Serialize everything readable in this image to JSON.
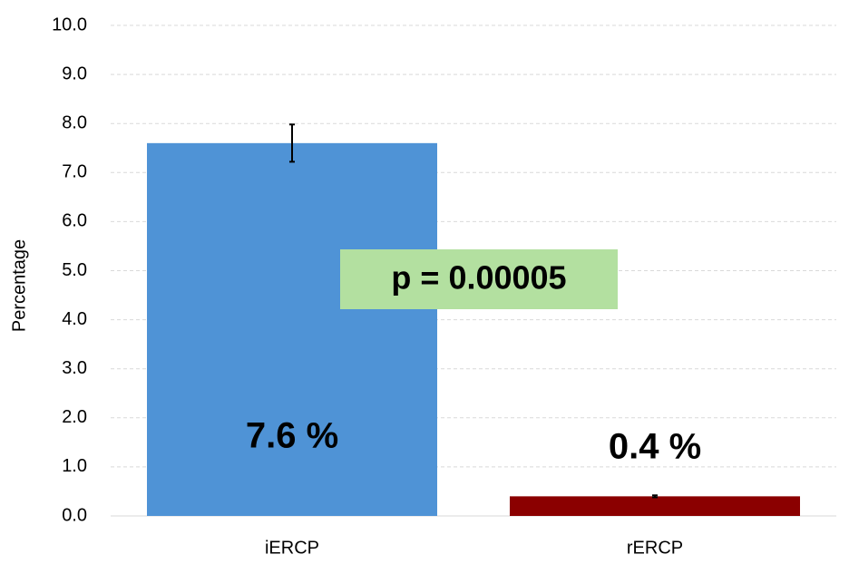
{
  "chart_data": {
    "type": "bar",
    "y_label": "Percentage",
    "categories": [
      "iERCP",
      "rERCP"
    ],
    "values": [
      7.6,
      0.4
    ],
    "value_labels": [
      "7.6 %",
      "0.4 %"
    ],
    "errors": [
      0.38,
      0.02
    ],
    "colors": [
      "#4f93d6",
      "#8b0000"
    ],
    "annotation": "p = 0.00005",
    "ylim": [
      0,
      10
    ],
    "yticks": [
      {
        "value": 0,
        "label": "0.0"
      },
      {
        "value": 1,
        "label": "1.0"
      },
      {
        "value": 2,
        "label": "2.0"
      },
      {
        "value": 3,
        "label": "3.0"
      },
      {
        "value": 4,
        "label": "4.0"
      },
      {
        "value": 5,
        "label": "5.0"
      },
      {
        "value": 6,
        "label": "6.0"
      },
      {
        "value": 7,
        "label": "7.0"
      },
      {
        "value": 8,
        "label": "8.0"
      },
      {
        "value": 9,
        "label": "9.0"
      },
      {
        "value": 10,
        "label": "10.0"
      }
    ],
    "grid": true
  }
}
